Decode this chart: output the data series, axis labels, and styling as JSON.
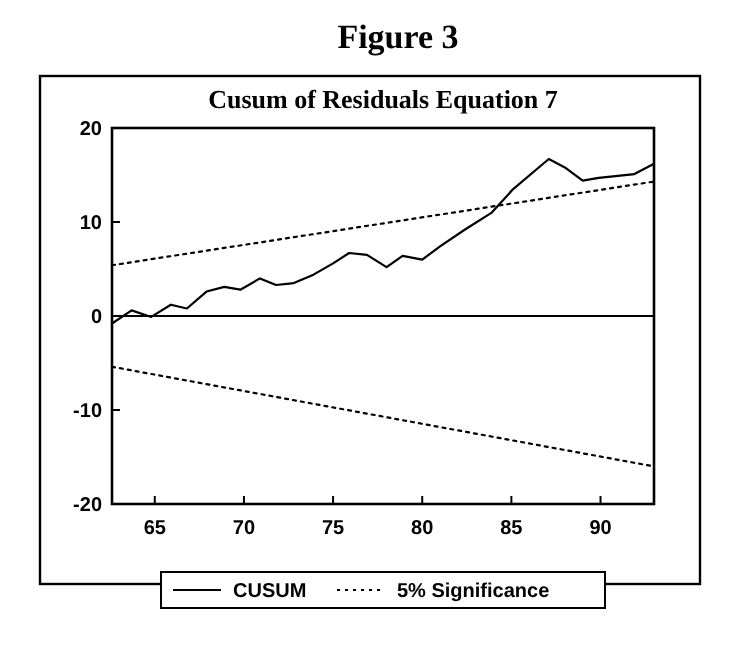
{
  "chart_data": {
    "type": "line",
    "title": "Figure 3",
    "subtitle": "Cusum of Residuals Equation 7",
    "xlim": [
      62.6,
      93
    ],
    "xticks": [
      65,
      70,
      75,
      80,
      85,
      90
    ],
    "ylim": [
      -20,
      20
    ],
    "yticks": [
      -20,
      -10,
      0,
      10,
      20
    ],
    "grid": false,
    "legend": "bottom",
    "marker": "none",
    "ref_lines": [
      {
        "axis": "y",
        "value": 0,
        "color": "#000000",
        "line_style": "solid"
      }
    ],
    "series": [
      {
        "name": "CUSUM",
        "color": "#000000",
        "line_style": "solid",
        "x": [
          62.6,
          63.7,
          64.8,
          65.9,
          66.8,
          67.9,
          68.9,
          69.8,
          70.9,
          71.8,
          72.8,
          73.9,
          75,
          75.9,
          76.9,
          78,
          78.9,
          80,
          81,
          82.4,
          83.9,
          85.1,
          87.1,
          88,
          89,
          89.9,
          91.9,
          93
        ],
        "values": [
          -0.8,
          0.6,
          -0.1,
          1.2,
          0.8,
          2.6,
          3.1,
          2.8,
          4,
          3.3,
          3.5,
          4.4,
          5.6,
          6.7,
          6.5,
          5.2,
          6.4,
          6,
          7.4,
          9.2,
          11,
          13.5,
          16.7,
          15.8,
          14.4,
          14.7,
          15.1,
          16.2
        ]
      },
      {
        "name": "5% Significance",
        "color": "#000000",
        "line_style": "dotted",
        "x": [
          62.6,
          93
        ],
        "values": [
          5.4,
          14.3
        ]
      },
      {
        "color": "#000000",
        "line_style": "dotted",
        "x": [
          62.6,
          93
        ],
        "values": [
          -5.4,
          -16
        ]
      }
    ]
  }
}
